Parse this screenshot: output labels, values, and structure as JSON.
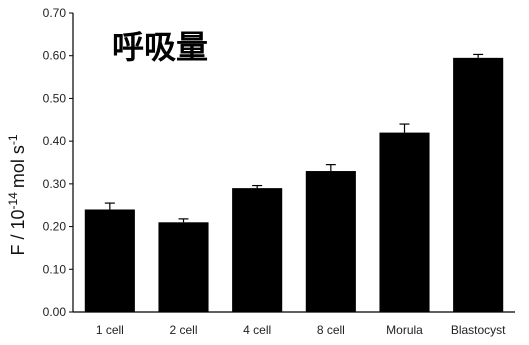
{
  "chart_data": {
    "type": "bar",
    "title": "呼吸量",
    "ylabel": "F / 10 -14 mol s-1",
    "ylabel_parts": {
      "base": "F / 10",
      "exp1": "-14",
      "unit": "mol s",
      "exp2": "-1"
    },
    "ylim": [
      0,
      0.7
    ],
    "yticks": [
      "0.00",
      "0.10",
      "0.20",
      "0.30",
      "0.40",
      "0.50",
      "0.60",
      "0.70"
    ],
    "categories": [
      "1 cell",
      "2 cell",
      "4 cell",
      "8 cell",
      "Morula",
      "Blastocyst"
    ],
    "values": [
      0.24,
      0.21,
      0.29,
      0.33,
      0.42,
      0.595
    ],
    "errors": [
      0.015,
      0.008,
      0.006,
      0.015,
      0.02,
      0.008
    ],
    "bar_color": "#000000",
    "grid": false
  }
}
